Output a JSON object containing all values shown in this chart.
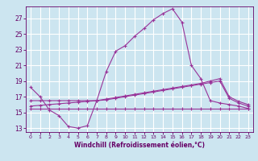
{
  "bg_color": "#cce5f0",
  "grid_color": "#ffffff",
  "line_color": "#993399",
  "xlabel": "Windchill (Refroidissement éolien,°C)",
  "xlabel_color": "#660066",
  "tick_color": "#660066",
  "ylim": [
    12.5,
    28.5
  ],
  "xlim": [
    -0.5,
    23.5
  ],
  "yticks": [
    13,
    15,
    17,
    19,
    21,
    23,
    25,
    27
  ],
  "xticks": [
    0,
    1,
    2,
    3,
    4,
    5,
    6,
    7,
    8,
    9,
    10,
    11,
    12,
    13,
    14,
    15,
    16,
    17,
    18,
    19,
    20,
    21,
    22,
    23
  ],
  "line1_x": [
    0,
    1,
    2,
    3,
    4,
    5,
    6,
    7,
    8,
    9,
    10,
    11,
    12,
    13,
    14,
    15,
    16,
    17,
    18,
    19,
    20,
    21,
    22,
    23
  ],
  "line1_y": [
    18.2,
    17.0,
    15.3,
    14.6,
    13.2,
    13.0,
    13.3,
    16.5,
    20.2,
    22.8,
    23.5,
    24.7,
    25.7,
    26.8,
    27.6,
    28.2,
    26.5,
    21.0,
    19.3,
    16.5,
    16.2,
    16.0,
    15.8,
    15.5
  ],
  "line2_x": [
    0,
    1,
    2,
    3,
    4,
    5,
    6,
    7,
    8,
    9,
    10,
    11,
    12,
    13,
    14,
    15,
    16,
    17,
    18,
    19,
    20,
    21,
    22,
    23
  ],
  "line2_y": [
    15.5,
    15.5,
    15.5,
    15.5,
    15.5,
    15.5,
    15.5,
    15.5,
    15.5,
    15.5,
    15.5,
    15.5,
    15.5,
    15.5,
    15.5,
    15.5,
    15.5,
    15.5,
    15.5,
    15.5,
    15.5,
    15.5,
    15.5,
    15.5
  ],
  "line3_x": [
    0,
    1,
    2,
    3,
    4,
    5,
    6,
    7,
    8,
    9,
    10,
    11,
    12,
    13,
    14,
    15,
    16,
    17,
    18,
    19,
    20,
    21,
    22,
    23
  ],
  "line3_y": [
    15.8,
    15.9,
    16.0,
    16.1,
    16.2,
    16.3,
    16.4,
    16.5,
    16.7,
    16.9,
    17.1,
    17.3,
    17.5,
    17.7,
    17.9,
    18.1,
    18.3,
    18.5,
    18.7,
    19.0,
    19.3,
    17.0,
    16.4,
    16.0
  ],
  "line4_x": [
    0,
    1,
    2,
    3,
    4,
    5,
    6,
    7,
    8,
    9,
    10,
    11,
    12,
    13,
    14,
    15,
    16,
    17,
    18,
    19,
    20,
    21,
    22,
    23
  ],
  "line4_y": [
    16.5,
    16.5,
    16.5,
    16.5,
    16.5,
    16.5,
    16.5,
    16.5,
    16.6,
    16.8,
    17.0,
    17.2,
    17.4,
    17.6,
    17.8,
    18.0,
    18.2,
    18.4,
    18.6,
    18.8,
    19.0,
    16.8,
    16.2,
    15.8
  ]
}
